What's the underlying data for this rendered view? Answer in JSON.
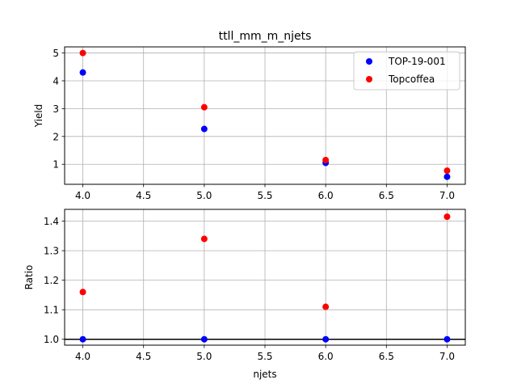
{
  "chart_data": [
    {
      "type": "scatter",
      "title": "ttll_mm_m_njets",
      "xlabel": "",
      "ylabel": "Yield",
      "xlim": [
        3.85,
        7.15
      ],
      "ylim": [
        0.28,
        5.22
      ],
      "xticks": [
        4.0,
        4.5,
        5.0,
        5.5,
        6.0,
        6.5,
        7.0
      ],
      "xtick_labels": [
        "4.0",
        "4.5",
        "5.0",
        "5.5",
        "6.0",
        "6.5",
        "7.0"
      ],
      "yticks": [
        1,
        2,
        3,
        4,
        5
      ],
      "ytick_labels": [
        "1",
        "2",
        "3",
        "4",
        "5"
      ],
      "grid": true,
      "legend": "top-right",
      "series": [
        {
          "name": "TOP-19-001",
          "color": "#0000ff",
          "x": [
            4,
            5,
            6,
            7
          ],
          "y": [
            4.3,
            2.27,
            1.05,
            0.55
          ]
        },
        {
          "name": "Topcoffea",
          "color": "#ff0000",
          "x": [
            4,
            5,
            6,
            7
          ],
          "y": [
            5.0,
            3.05,
            1.15,
            0.77
          ]
        }
      ]
    },
    {
      "type": "scatter",
      "title": "",
      "xlabel": "njets",
      "ylabel": "Ratio",
      "xlim": [
        3.85,
        7.15
      ],
      "ylim": [
        0.98,
        1.44
      ],
      "xticks": [
        4.0,
        4.5,
        5.0,
        5.5,
        6.0,
        6.5,
        7.0
      ],
      "xtick_labels": [
        "4.0",
        "4.5",
        "5.0",
        "5.5",
        "6.0",
        "6.5",
        "7.0"
      ],
      "yticks": [
        1.0,
        1.1,
        1.2,
        1.3,
        1.4
      ],
      "ytick_labels": [
        "1.0",
        "1.1",
        "1.2",
        "1.3",
        "1.4"
      ],
      "grid": true,
      "reference_line": 1.0,
      "series": [
        {
          "color": "#0000ff",
          "x": [
            4,
            5,
            6,
            7
          ],
          "y": [
            1.0,
            1.0,
            1.0,
            1.0
          ]
        },
        {
          "color": "#ff0000",
          "x": [
            4,
            5,
            6,
            7
          ],
          "y": [
            1.16,
            1.34,
            1.11,
            1.415
          ]
        }
      ]
    }
  ]
}
